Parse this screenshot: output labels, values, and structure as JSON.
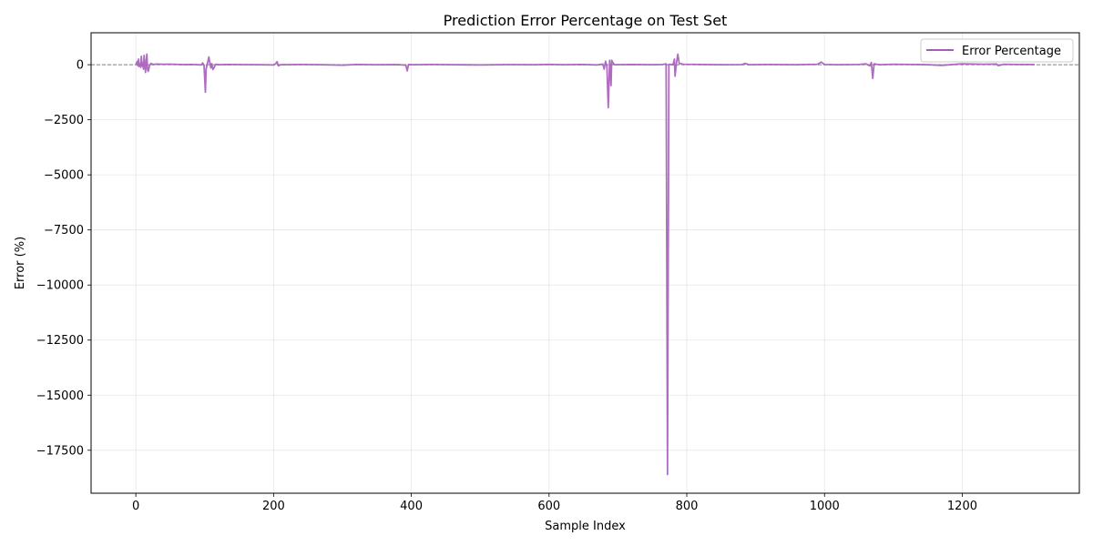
{
  "chart_data": {
    "type": "line",
    "title": "Prediction Error Percentage on Test Set",
    "xlabel": "Sample Index",
    "ylabel": "Error (%)",
    "xlim": [
      -65,
      1370
    ],
    "ylim": [
      -19450,
      1450
    ],
    "xticks": [
      0,
      200,
      400,
      600,
      800,
      1000,
      1200
    ],
    "yticks": [
      0,
      -2500,
      -5000,
      -7500,
      -10000,
      -12500,
      -15000,
      -17500
    ],
    "ytick_labels": [
      "0",
      "−2500",
      "−5000",
      "−7500",
      "−10000",
      "−12500",
      "−15000",
      "−17500"
    ],
    "grid": true,
    "legend_position": "top-right",
    "reference_line": {
      "y": 0,
      "style": "dashed",
      "color": "#808080"
    },
    "colors": {
      "series": "#a65dba"
    },
    "series": [
      {
        "name": "Error Percentage",
        "points": [
          [
            0,
            0
          ],
          [
            2,
            150
          ],
          [
            3,
            -50
          ],
          [
            4,
            250
          ],
          [
            5,
            -80
          ],
          [
            6,
            40
          ],
          [
            7,
            -120
          ],
          [
            8,
            380
          ],
          [
            9,
            -60
          ],
          [
            10,
            90
          ],
          [
            11,
            -200
          ],
          [
            12,
            420
          ],
          [
            13,
            30
          ],
          [
            14,
            -350
          ],
          [
            15,
            120
          ],
          [
            16,
            480
          ],
          [
            17,
            -220
          ],
          [
            18,
            -300
          ],
          [
            20,
            -40
          ],
          [
            22,
            60
          ],
          [
            25,
            10
          ],
          [
            30,
            30
          ],
          [
            40,
            20
          ],
          [
            50,
            25
          ],
          [
            60,
            15
          ],
          [
            70,
            5
          ],
          [
            80,
            10
          ],
          [
            90,
            0
          ],
          [
            95,
            -10
          ],
          [
            97,
            80
          ],
          [
            99,
            -20
          ],
          [
            101,
            -1250
          ],
          [
            102,
            -200
          ],
          [
            104,
            60
          ],
          [
            106,
            350
          ],
          [
            107,
            150
          ],
          [
            109,
            -150
          ],
          [
            110,
            50
          ],
          [
            112,
            -220
          ],
          [
            114,
            -100
          ],
          [
            116,
            20
          ],
          [
            120,
            0
          ],
          [
            130,
            10
          ],
          [
            150,
            5
          ],
          [
            180,
            0
          ],
          [
            200,
            -10
          ],
          [
            203,
            40
          ],
          [
            205,
            140
          ],
          [
            207,
            -50
          ],
          [
            210,
            0
          ],
          [
            240,
            10
          ],
          [
            270,
            0
          ],
          [
            300,
            -20
          ],
          [
            320,
            10
          ],
          [
            350,
            0
          ],
          [
            380,
            5
          ],
          [
            392,
            -20
          ],
          [
            394,
            -280
          ],
          [
            396,
            10
          ],
          [
            400,
            0
          ],
          [
            430,
            10
          ],
          [
            460,
            0
          ],
          [
            500,
            -10
          ],
          [
            540,
            5
          ],
          [
            580,
            0
          ],
          [
            600,
            15
          ],
          [
            620,
            0
          ],
          [
            650,
            10
          ],
          [
            670,
            -10
          ],
          [
            678,
            30
          ],
          [
            680,
            -200
          ],
          [
            682,
            160
          ],
          [
            684,
            -80
          ],
          [
            686,
            -1950
          ],
          [
            688,
            200
          ],
          [
            689,
            -300
          ],
          [
            690,
            -950
          ],
          [
            691,
            200
          ],
          [
            693,
            80
          ],
          [
            695,
            0
          ],
          [
            720,
            10
          ],
          [
            750,
            0
          ],
          [
            765,
            10
          ],
          [
            770,
            40
          ],
          [
            772,
            -18600
          ],
          [
            774,
            20
          ],
          [
            780,
            0
          ],
          [
            782,
            250
          ],
          [
            783,
            -520
          ],
          [
            785,
            80
          ],
          [
            787,
            480
          ],
          [
            789,
            60
          ],
          [
            795,
            20
          ],
          [
            820,
            10
          ],
          [
            850,
            0
          ],
          [
            880,
            5
          ],
          [
            885,
            60
          ],
          [
            890,
            0
          ],
          [
            920,
            10
          ],
          [
            960,
            0
          ],
          [
            990,
            20
          ],
          [
            995,
            120
          ],
          [
            1000,
            10
          ],
          [
            1020,
            0
          ],
          [
            1050,
            10
          ],
          [
            1060,
            40
          ],
          [
            1066,
            -50
          ],
          [
            1068,
            100
          ],
          [
            1070,
            -620
          ],
          [
            1072,
            40
          ],
          [
            1080,
            0
          ],
          [
            1100,
            20
          ],
          [
            1130,
            10
          ],
          [
            1150,
            0
          ],
          [
            1170,
            -30
          ],
          [
            1200,
            40
          ],
          [
            1230,
            20
          ],
          [
            1250,
            30
          ],
          [
            1252,
            -40
          ],
          [
            1260,
            20
          ],
          [
            1280,
            10
          ],
          [
            1300,
            10
          ],
          [
            1305,
            5
          ]
        ]
      }
    ]
  }
}
